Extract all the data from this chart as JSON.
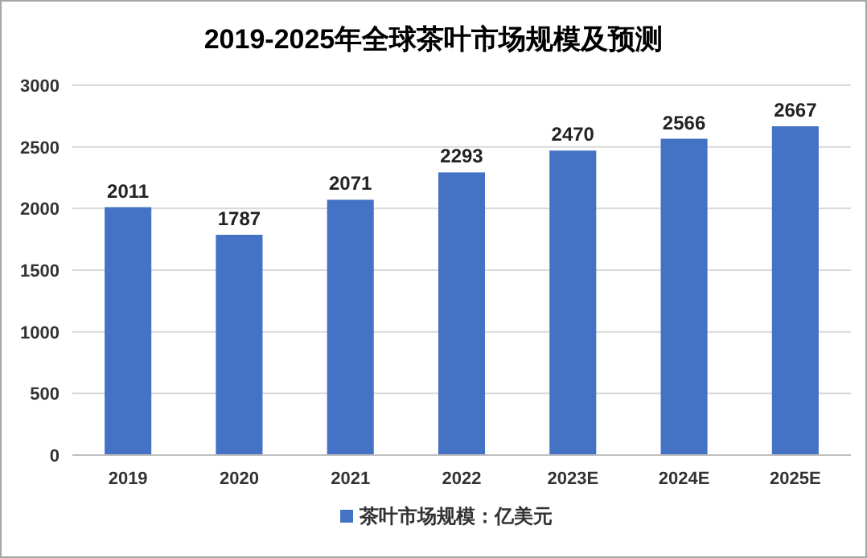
{
  "chart_data": {
    "type": "bar",
    "title": "2019-2025年全球茶叶市场规模及预测",
    "categories": [
      "2019",
      "2020",
      "2021",
      "2022",
      "2023E",
      "2024E",
      "2025E"
    ],
    "series": [
      {
        "name": "茶叶市场规模：亿美元",
        "color": "#4472c4",
        "values": [
          2011,
          1787,
          2071,
          2293,
          2470,
          2566,
          2667
        ]
      }
    ],
    "ylim": [
      0,
      3000
    ],
    "yticks": [
      0,
      500,
      1000,
      1500,
      2000,
      2500,
      3000
    ],
    "grid": "y",
    "legend": "bottom",
    "data_labels": true
  }
}
